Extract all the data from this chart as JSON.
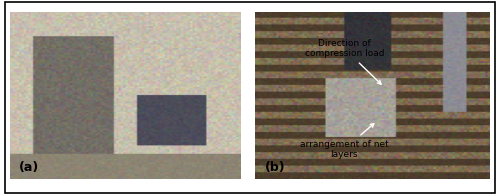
{
  "figure_width": 5.0,
  "figure_height": 1.95,
  "dpi": 100,
  "background_color": "#ffffff",
  "border_color": "#000000",
  "left_photo_label": "(a)",
  "right_photo_label": "(b)",
  "annotation1_text": "Direction of\ncompression load",
  "annotation2_text": "arrangement of net\nlayers",
  "arrow_color": "#ffffff",
  "annotation_fontsize": 6.5,
  "label_fontsize": 9,
  "outer_border_lw": 1.2,
  "image_border_lw": 0.8
}
